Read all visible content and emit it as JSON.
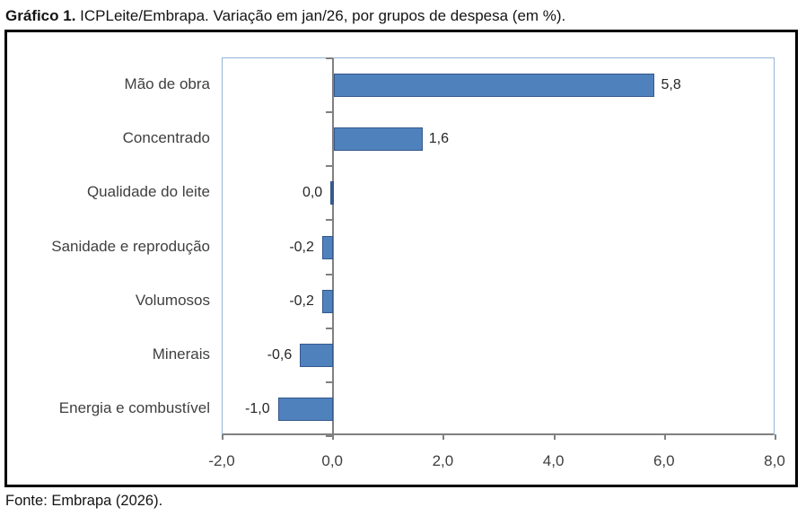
{
  "title": {
    "prefix": "Gráfico 1.",
    "text": " ICPLeite/Embrapa. Variação em jan/26, por grupos de despesa (em %)."
  },
  "footer": {
    "source": "Fonte: Embrapa (2026)."
  },
  "chart_data": {
    "type": "bar",
    "orientation": "horizontal",
    "title": "Gráfico 1. ICPLeite/Embrapa. Variação em jan/26, por grupos de despesa (em %).",
    "categories": [
      "Mão de obra",
      "Concentrado",
      "Qualidade do leite",
      "Sanidade e reprodução",
      "Volumosos",
      "Minerais",
      "Energia e combustível"
    ],
    "values": [
      5.8,
      1.6,
      0.0,
      -0.2,
      -0.2,
      -0.6,
      -1.0
    ],
    "value_labels": [
      "5,8",
      "1,6",
      "0,0",
      "-0,2",
      "-0,2",
      "-0,6",
      "-1,0"
    ],
    "xlabel": "",
    "ylabel": "",
    "xlim": [
      -2,
      8
    ],
    "xticks": [
      {
        "value": -2,
        "label": "-2,0"
      },
      {
        "value": 0,
        "label": "0,0"
      },
      {
        "value": 2,
        "label": "2,0"
      },
      {
        "value": 4,
        "label": "4,0"
      },
      {
        "value": 6,
        "label": "6,0"
      },
      {
        "value": 8,
        "label": "8,0"
      }
    ],
    "grid": false,
    "legend": false,
    "colors": {
      "bar_fill": "#4f81bd",
      "bar_border": "#36598c",
      "axis_line": "#808080",
      "plot_border": "#95b3d7",
      "label_text": "#3f3f3f",
      "value_text": "#262626",
      "frame_border": "#000000"
    }
  }
}
